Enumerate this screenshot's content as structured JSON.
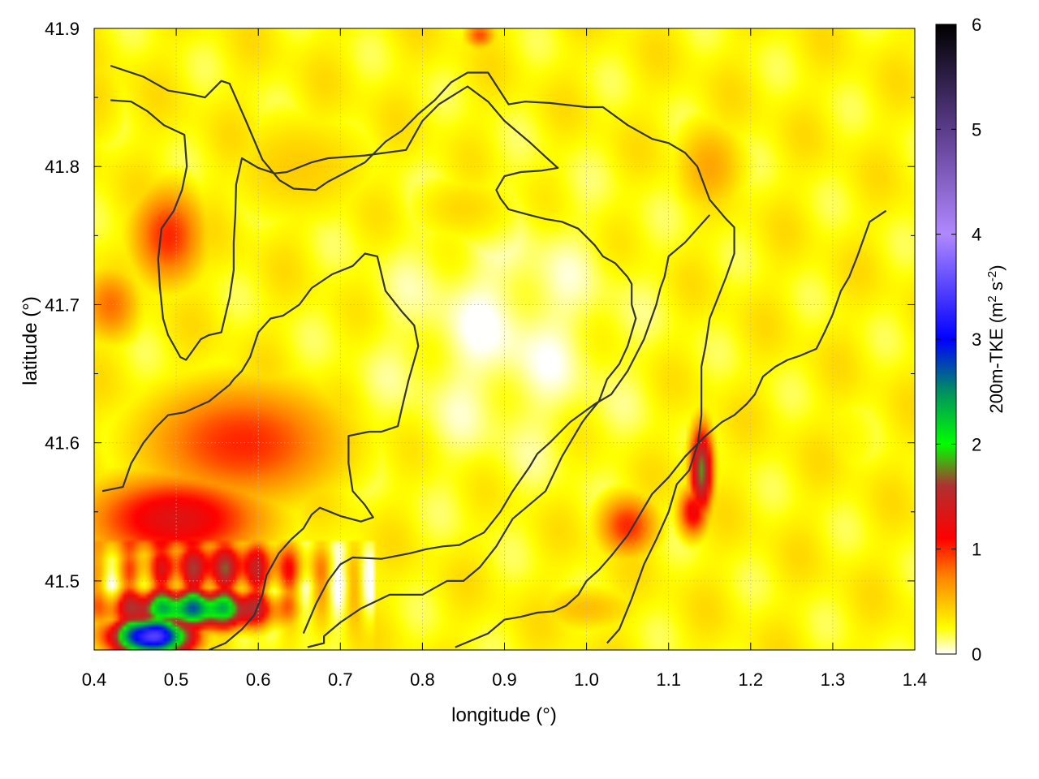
{
  "chart_data": {
    "type": "heatmap",
    "title": "",
    "xlabel": "longitude (°)",
    "ylabel": "latitude (°)",
    "xlim": [
      0.4,
      1.4
    ],
    "ylim": [
      41.45,
      41.9
    ],
    "x_ticks": [
      0.4,
      0.5,
      0.6,
      0.7,
      0.8,
      0.9,
      1.0,
      1.1,
      1.2,
      1.3,
      1.4
    ],
    "x_tick_labels": [
      "0.4",
      "0.5",
      "0.6",
      "0.7",
      "0.8",
      "0.9",
      "1.0",
      "1.1",
      "1.2",
      "1.3",
      "1.4"
    ],
    "y_ticks": [
      41.5,
      41.6,
      41.7,
      41.8,
      41.9
    ],
    "y_tick_labels": [
      "41.5",
      "41.6",
      "41.7",
      "41.8",
      "41.9"
    ],
    "grid": true,
    "colorbar": {
      "label": "200m-TKE (m² s⁻²)",
      "label_base": "200m-TKE (m",
      "label_sup1": "2",
      "label_mid": " s",
      "label_sup2": "-2",
      "label_end": ")",
      "range": [
        0,
        6
      ],
      "ticks": [
        0,
        1,
        2,
        3,
        4,
        5,
        6
      ],
      "tick_labels": [
        "0",
        "1",
        "2",
        "3",
        "4",
        "5",
        "6"
      ],
      "placement": "right",
      "colors": [
        {
          "v": 0.0,
          "c": "#ffffff"
        },
        {
          "v": 0.25,
          "c": "#ffff00"
        },
        {
          "v": 0.75,
          "c": "#ff8000"
        },
        {
          "v": 1.1,
          "c": "#ff0000"
        },
        {
          "v": 1.6,
          "c": "#b03030"
        },
        {
          "v": 2.0,
          "c": "#00ff00"
        },
        {
          "v": 2.5,
          "c": "#009060"
        },
        {
          "v": 3.0,
          "c": "#0000ff"
        },
        {
          "v": 4.0,
          "c": "#b088ff"
        },
        {
          "v": 5.0,
          "c": "#5a3c8a"
        },
        {
          "v": 6.0,
          "c": "#000000"
        }
      ]
    },
    "field_blobs": [
      {
        "x": 0.49,
        "y": 41.75,
        "sx": 0.05,
        "sy": 0.04,
        "v": 1.0
      },
      {
        "x": 0.42,
        "y": 41.7,
        "sx": 0.04,
        "sy": 0.03,
        "v": 0.8
      },
      {
        "x": 0.58,
        "y": 41.6,
        "sx": 0.14,
        "sy": 0.05,
        "v": 1.0
      },
      {
        "x": 0.5,
        "y": 41.545,
        "sx": 0.12,
        "sy": 0.035,
        "v": 1.3
      },
      {
        "x": 0.55,
        "y": 41.51,
        "sx": 0.12,
        "sy": 0.02,
        "v": 1.4
      },
      {
        "x": 0.52,
        "y": 41.48,
        "sx": 0.1,
        "sy": 0.015,
        "v": 2.5
      },
      {
        "x": 0.47,
        "y": 41.46,
        "sx": 0.05,
        "sy": 0.015,
        "v": 3.5
      },
      {
        "x": 1.05,
        "y": 41.54,
        "sx": 0.04,
        "sy": 0.025,
        "v": 1.0
      },
      {
        "x": 1.14,
        "y": 41.58,
        "sx": 0.015,
        "sy": 0.035,
        "v": 1.8
      },
      {
        "x": 1.13,
        "y": 41.55,
        "sx": 0.02,
        "sy": 0.02,
        "v": 1.2
      },
      {
        "x": 1.15,
        "y": 41.8,
        "sx": 0.05,
        "sy": 0.04,
        "v": 0.6
      },
      {
        "x": 0.65,
        "y": 41.8,
        "sx": 0.12,
        "sy": 0.05,
        "v": 0.45
      },
      {
        "x": 0.85,
        "y": 41.77,
        "sx": 0.08,
        "sy": 0.03,
        "v": 0.4
      },
      {
        "x": 0.87,
        "y": 41.895,
        "sx": 0.02,
        "sy": 0.01,
        "v": 0.9
      },
      {
        "x": 1.3,
        "y": 41.6,
        "sx": 0.08,
        "sy": 0.06,
        "v": 0.3
      },
      {
        "x": 1.0,
        "y": 41.48,
        "sx": 0.08,
        "sy": 0.02,
        "v": 0.5
      },
      {
        "x": 0.4,
        "y": 41.85,
        "sx": 0.05,
        "sy": 0.05,
        "v": 0.4
      }
    ],
    "contours": [
      [
        [
          0.42,
          41.873
        ],
        [
          0.46,
          41.865
        ],
        [
          0.49,
          41.855
        ],
        [
          0.52,
          41.852
        ],
        [
          0.535,
          41.85
        ],
        [
          0.555,
          41.862
        ],
        [
          0.565,
          41.86
        ],
        [
          0.585,
          41.833
        ],
        [
          0.605,
          41.805
        ],
        [
          0.626,
          41.79
        ],
        [
          0.643,
          41.784
        ],
        [
          0.67,
          41.783
        ],
        [
          0.685,
          41.789
        ],
        [
          0.73,
          41.803
        ],
        [
          0.755,
          41.818
        ],
        [
          0.775,
          41.826
        ],
        [
          0.795,
          41.838
        ],
        [
          0.815,
          41.848
        ],
        [
          0.835,
          41.861
        ],
        [
          0.855,
          41.868
        ],
        [
          0.88,
          41.868
        ],
        [
          0.905,
          41.845
        ],
        [
          0.925,
          41.847
        ],
        [
          0.955,
          41.846
        ],
        [
          1.0,
          41.843
        ],
        [
          1.02,
          41.843
        ],
        [
          1.05,
          41.83
        ],
        [
          1.08,
          41.82
        ],
        [
          1.1,
          41.817
        ],
        [
          1.12,
          41.81
        ],
        [
          1.135,
          41.8
        ],
        [
          1.15,
          41.776
        ],
        [
          1.17,
          41.762
        ],
        [
          1.18,
          41.756
        ],
        [
          1.18,
          41.737
        ],
        [
          1.17,
          41.72
        ],
        [
          1.15,
          41.69
        ],
        [
          1.145,
          41.67
        ],
        [
          1.14,
          41.655
        ],
        [
          1.14,
          41.62
        ],
        [
          1.136,
          41.6
        ],
        [
          1.125,
          41.58
        ],
        [
          1.11,
          41.57
        ],
        [
          1.1,
          41.55
        ],
        [
          1.085,
          41.53
        ],
        [
          1.07,
          41.512
        ],
        [
          1.055,
          41.487
        ],
        [
          1.04,
          41.465
        ],
        [
          1.025,
          41.455
        ]
      ],
      [
        [
          0.42,
          41.848
        ],
        [
          0.445,
          41.847
        ],
        [
          0.465,
          41.84
        ],
        [
          0.485,
          41.83
        ],
        [
          0.51,
          41.823
        ],
        [
          0.513,
          41.8
        ],
        [
          0.507,
          41.783
        ],
        [
          0.497,
          41.768
        ],
        [
          0.482,
          41.755
        ],
        [
          0.478,
          41.733
        ],
        [
          0.48,
          41.713
        ],
        [
          0.484,
          41.69
        ],
        [
          0.49,
          41.678
        ],
        [
          0.505,
          41.662
        ],
        [
          0.512,
          41.66
        ],
        [
          0.518,
          41.665
        ],
        [
          0.53,
          41.675
        ],
        [
          0.54,
          41.678
        ],
        [
          0.555,
          41.68
        ],
        [
          0.565,
          41.705
        ],
        [
          0.57,
          41.725
        ],
        [
          0.57,
          41.745
        ],
        [
          0.572,
          41.765
        ],
        [
          0.573,
          41.787
        ],
        [
          0.58,
          41.806
        ],
        [
          0.6,
          41.799
        ],
        [
          0.62,
          41.795
        ],
        [
          0.635,
          41.796
        ],
        [
          0.665,
          41.803
        ],
        [
          0.685,
          41.806
        ],
        [
          0.73,
          41.808
        ],
        [
          0.78,
          41.812
        ],
        [
          0.8,
          41.833
        ],
        [
          0.82,
          41.845
        ],
        [
          0.855,
          41.858
        ],
        [
          0.88,
          41.847
        ],
        [
          0.9,
          41.833
        ],
        [
          0.93,
          41.818
        ],
        [
          0.95,
          41.807
        ],
        [
          0.965,
          41.799
        ],
        [
          0.945,
          41.797
        ],
        [
          0.92,
          41.796
        ],
        [
          0.9,
          41.793
        ],
        [
          0.89,
          41.783
        ],
        [
          0.895,
          41.777
        ],
        [
          0.905,
          41.769
        ],
        [
          0.93,
          41.765
        ],
        [
          0.95,
          41.762
        ],
        [
          0.97,
          41.76
        ],
        [
          0.99,
          41.755
        ],
        [
          1.01,
          41.743
        ],
        [
          1.02,
          41.735
        ],
        [
          1.035,
          41.73
        ],
        [
          1.05,
          41.72
        ],
        [
          1.055,
          41.715
        ],
        [
          1.055,
          41.7
        ],
        [
          1.06,
          41.69
        ],
        [
          1.05,
          41.67
        ],
        [
          1.04,
          41.657
        ],
        [
          1.025,
          41.646
        ],
        [
          1.015,
          41.63
        ],
        [
          1.0,
          41.619
        ],
        [
          0.995,
          41.615
        ],
        [
          0.97,
          41.59
        ],
        [
          0.95,
          41.565
        ],
        [
          0.93,
          41.555
        ],
        [
          0.91,
          41.545
        ],
        [
          0.89,
          41.525
        ],
        [
          0.87,
          41.51
        ],
        [
          0.85,
          41.5
        ],
        [
          0.83,
          41.5
        ],
        [
          0.8,
          41.49
        ],
        [
          0.76,
          41.49
        ],
        [
          0.725,
          41.48
        ],
        [
          0.7,
          41.47
        ],
        [
          0.69,
          41.465
        ],
        [
          0.68,
          41.46
        ],
        [
          0.68,
          41.455
        ],
        [
          0.66,
          41.452
        ]
      ],
      [
        [
          0.41,
          41.565
        ],
        [
          0.435,
          41.568
        ],
        [
          0.445,
          41.585
        ],
        [
          0.46,
          41.6
        ],
        [
          0.475,
          41.611
        ],
        [
          0.49,
          41.62
        ],
        [
          0.51,
          41.622
        ],
        [
          0.54,
          41.63
        ],
        [
          0.565,
          41.642
        ],
        [
          0.57,
          41.646
        ],
        [
          0.58,
          41.652
        ],
        [
          0.59,
          41.662
        ],
        [
          0.6,
          41.68
        ],
        [
          0.615,
          41.69
        ],
        [
          0.63,
          41.692
        ],
        [
          0.65,
          41.7
        ],
        [
          0.665,
          41.712
        ],
        [
          0.69,
          41.722
        ],
        [
          0.715,
          41.728
        ],
        [
          0.73,
          41.737
        ],
        [
          0.745,
          41.735
        ],
        [
          0.755,
          41.71
        ],
        [
          0.775,
          41.695
        ],
        [
          0.79,
          41.685
        ],
        [
          0.795,
          41.67
        ],
        [
          0.783,
          41.645
        ],
        [
          0.775,
          41.625
        ],
        [
          0.77,
          41.612
        ],
        [
          0.75,
          41.608
        ],
        [
          0.735,
          41.608
        ],
        [
          0.71,
          41.605
        ],
        [
          0.71,
          41.585
        ],
        [
          0.715,
          41.565
        ],
        [
          0.73,
          41.555
        ],
        [
          0.74,
          41.546
        ],
        [
          0.725,
          41.543
        ],
        [
          0.7,
          41.547
        ],
        [
          0.675,
          41.553
        ],
        [
          0.665,
          41.548
        ],
        [
          0.655,
          41.538
        ],
        [
          0.64,
          41.53
        ],
        [
          0.625,
          41.52
        ],
        [
          0.61,
          41.504
        ],
        [
          0.605,
          41.49
        ],
        [
          0.595,
          41.475
        ],
        [
          0.58,
          41.465
        ],
        [
          0.56,
          41.455
        ],
        [
          0.54,
          41.45
        ]
      ],
      [
        [
          0.655,
          41.462
        ],
        [
          0.67,
          41.483
        ],
        [
          0.685,
          41.5
        ],
        [
          0.7,
          41.512
        ],
        [
          0.715,
          41.517
        ],
        [
          0.75,
          41.516
        ],
        [
          0.785,
          41.52
        ],
        [
          0.805,
          41.523
        ],
        [
          0.825,
          41.525
        ],
        [
          0.845,
          41.526
        ],
        [
          0.875,
          41.535
        ],
        [
          0.895,
          41.55
        ],
        [
          0.91,
          41.565
        ],
        [
          0.93,
          41.582
        ],
        [
          0.94,
          41.592
        ],
        [
          0.955,
          41.6
        ],
        [
          0.98,
          41.615
        ],
        [
          1.01,
          41.628
        ],
        [
          1.03,
          41.635
        ],
        [
          1.05,
          41.652
        ],
        [
          1.07,
          41.675
        ],
        [
          1.085,
          41.7
        ],
        [
          1.09,
          41.712
        ],
        [
          1.095,
          41.72
        ],
        [
          1.1,
          41.735
        ],
        [
          1.12,
          41.745
        ],
        [
          1.135,
          41.755
        ],
        [
          1.15,
          41.765
        ]
      ],
      [
        [
          0.84,
          41.452
        ],
        [
          0.86,
          41.457
        ],
        [
          0.88,
          41.462
        ],
        [
          0.9,
          41.472
        ],
        [
          0.92,
          41.474
        ],
        [
          0.94,
          41.477
        ],
        [
          0.96,
          41.478
        ],
        [
          0.975,
          41.482
        ],
        [
          0.99,
          41.49
        ],
        [
          1.0,
          41.5
        ],
        [
          1.015,
          41.508
        ],
        [
          1.03,
          41.518
        ],
        [
          1.05,
          41.533
        ],
        [
          1.065,
          41.548
        ],
        [
          1.08,
          41.563
        ],
        [
          1.1,
          41.575
        ],
        [
          1.12,
          41.59
        ],
        [
          1.145,
          41.605
        ],
        [
          1.165,
          41.615
        ],
        [
          1.18,
          41.62
        ],
        [
          1.195,
          41.628
        ],
        [
          1.205,
          41.635
        ],
        [
          1.215,
          41.648
        ],
        [
          1.23,
          41.655
        ],
        [
          1.245,
          41.66
        ],
        [
          1.26,
          41.663
        ],
        [
          1.28,
          41.668
        ],
        [
          1.29,
          41.68
        ],
        [
          1.3,
          41.693
        ],
        [
          1.31,
          41.71
        ],
        [
          1.32,
          41.72
        ],
        [
          1.33,
          41.735
        ],
        [
          1.345,
          41.76
        ],
        [
          1.365,
          41.768
        ]
      ]
    ]
  }
}
